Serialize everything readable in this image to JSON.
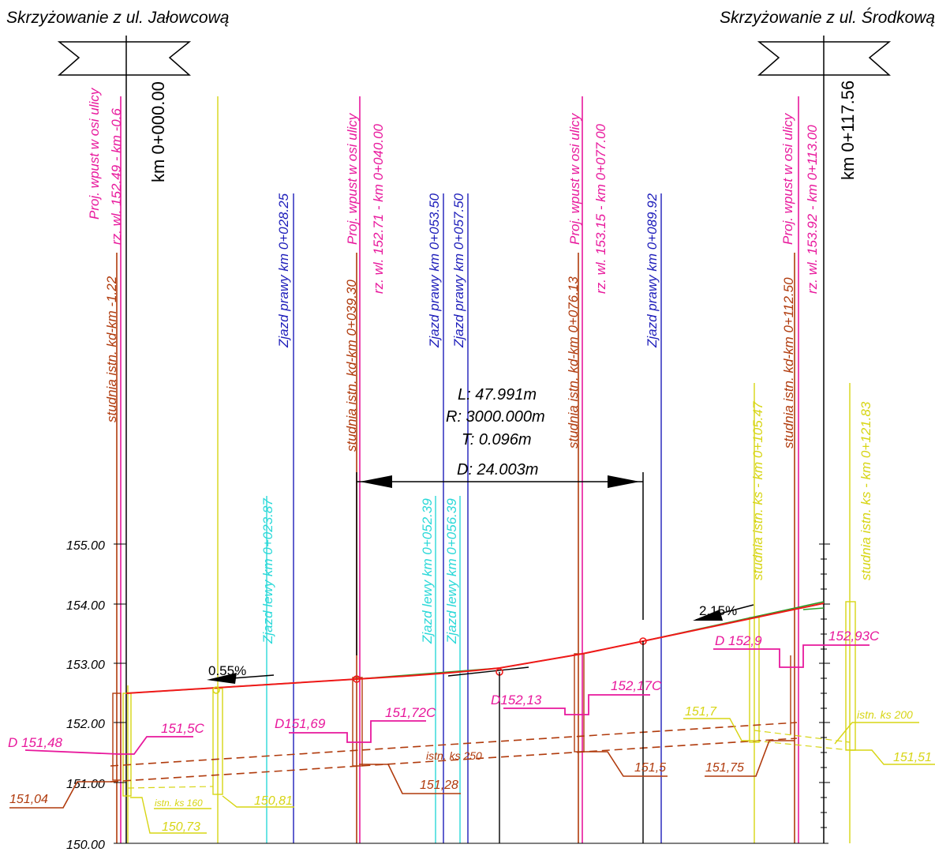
{
  "header": {
    "left_title": "Skrzyżowanie z ul. Jałowcową",
    "right_title": "Skrzyżowanie z ul. Środkową"
  },
  "chainage": {
    "start": "km 0+000.00",
    "end": "km 0+117.56"
  },
  "inlets": [
    {
      "title": "Proj. wpust w osi ulicy",
      "level": "rz. wl. 152.49 - km -0.6"
    },
    {
      "title": "Proj. wpust w osi ulicy",
      "level": "rz. wl. 152.71 - km 0+040.00"
    },
    {
      "title": "Proj. wpust w osi ulicy",
      "level": "rz. wl. 153.15 - km 0+077.00"
    },
    {
      "title": "Proj. wpust w osi ulicy",
      "level": "rz. wl. 153.92 - km 0+113.00"
    }
  ],
  "manholes_kd": [
    "studnia istn. kd-km -1.22",
    "studnia istn. kd-km 0+039.30",
    "studnia istn. kd-km 0+076.13",
    "studnia istn. kd-km 0+112.50"
  ],
  "manholes_ks": [
    "studnia istn. ks - km 0+105.47",
    "studnia istn. ks - km 0+121.83"
  ],
  "driveways_right": [
    "Zjazd prawy km 0+028.25",
    "Zjazd prawy km 0+053.50",
    "Zjazd prawy km 0+057.50",
    "Zjazd prawy km 0+089.92"
  ],
  "driveways_left": [
    "Zjazd lewy km 0+023.87",
    "Zjazd lewy km 0+052.39",
    "Zjazd lewy km 0+056.39"
  ],
  "vertical_curve": {
    "L": "L: 47.991m",
    "R": "R: 3000.000m",
    "T": "T: 0.096m",
    "D": "D: 24.003m"
  },
  "slopes": [
    "0.55%",
    "2.15%"
  ],
  "elevation_axis": [
    "155.00",
    "154.00",
    "153.00",
    "152.00",
    "151.00",
    "150.00"
  ],
  "level_labels": {
    "d_151_48": "D 151,48",
    "c_151_5": "151,5C",
    "d_151_69": "D151,69",
    "c_151_72": "151,72C",
    "d_152_13": "D152,13",
    "c_152_17": "152,17C",
    "d_152_9": "D 152,9",
    "c_152_93": "152,93C",
    "kd_151_04": "151,04",
    "kd_151_28": "151,28",
    "kd_151_5": "151,5",
    "kd_151_75": "151,75",
    "ks_150_81": "150,81",
    "ks_150_73": "150,73",
    "ks_151_7": "151,7",
    "ks_151_51": "151,51"
  },
  "pipes": {
    "ks160": "istn. ks 160",
    "ks250": "istn. ks 250",
    "ks200": "istn. ks 200"
  },
  "colors": {
    "magenta": "#e8189c",
    "brown": "#b03a0c",
    "yellow": "#d7d514",
    "blue": "#1d1dba",
    "cyan": "#2ad8d8",
    "red": "#f01818",
    "green": "#2ca02c",
    "black": "#000000"
  }
}
